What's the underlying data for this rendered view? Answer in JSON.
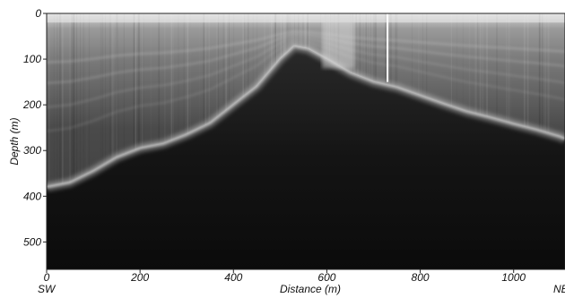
{
  "chart_data": {
    "type": "heatmap",
    "title": "",
    "xlabel": "Distance (m)",
    "ylabel": "Depth (m)",
    "xlim": [
      0,
      1110
    ],
    "ylim": [
      0,
      560
    ],
    "y_inverted": true,
    "x_ticks": [
      0,
      200,
      400,
      600,
      800,
      1000
    ],
    "y_ticks": [
      0,
      100,
      200,
      300,
      400,
      500
    ],
    "x_tick_labels": [
      "0",
      "200",
      "400",
      "600",
      "800",
      "1000"
    ],
    "y_tick_labels": [
      "0",
      "100",
      "200",
      "300",
      "400",
      "500"
    ],
    "end_labels": {
      "left": "SW",
      "right": "NE"
    },
    "colormap": "grayscale",
    "bed_reflector": {
      "x": [
        0,
        50,
        100,
        150,
        200,
        250,
        300,
        350,
        400,
        450,
        500,
        530,
        560,
        600,
        650,
        700,
        750,
        800,
        850,
        900,
        950,
        1000,
        1050,
        1100,
        1110
      ],
      "depth": [
        380,
        370,
        345,
        315,
        295,
        285,
        265,
        240,
        200,
        160,
        100,
        72,
        78,
        100,
        130,
        150,
        162,
        180,
        198,
        215,
        228,
        242,
        255,
        270,
        275
      ]
    },
    "marker_line": {
      "x": 730,
      "depth_start": 0,
      "depth_end": 150,
      "color": "#ffffff"
    }
  }
}
